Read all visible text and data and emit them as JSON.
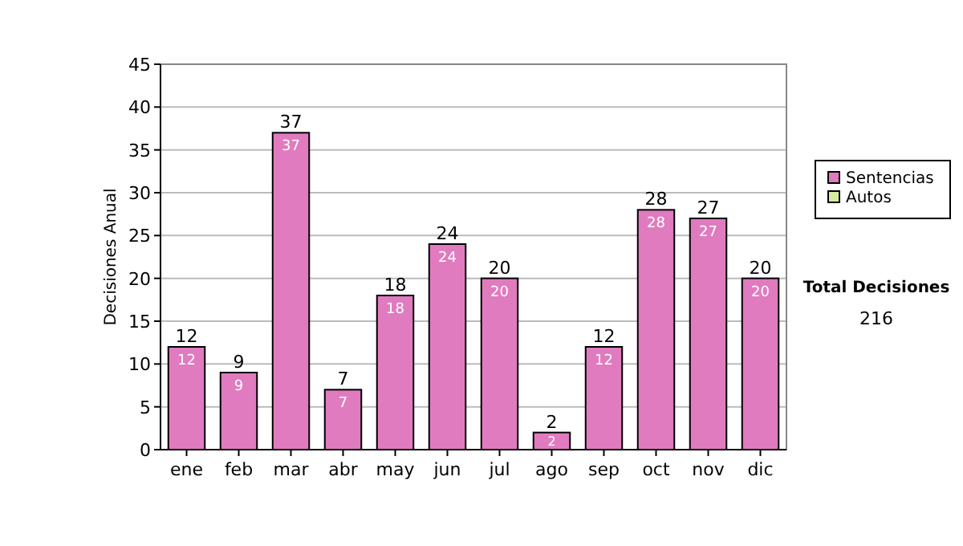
{
  "chart_data": {
    "type": "bar",
    "stacked": true,
    "ylabel": "Decisiones Anual",
    "categories": [
      "ene",
      "feb",
      "mar",
      "abr",
      "may",
      "jun",
      "jul",
      "ago",
      "sep",
      "oct",
      "nov",
      "dic"
    ],
    "series": [
      {
        "name": "Sentencias",
        "color": "#e07bc0",
        "values": [
          12,
          9,
          37,
          7,
          18,
          24,
          20,
          2,
          12,
          28,
          27,
          20
        ],
        "value_labels": [
          "12",
          "9",
          "37",
          "7",
          "18",
          "24",
          "20",
          "2",
          "12",
          "28",
          "27",
          "20"
        ]
      },
      {
        "name": "Autos",
        "color": "#d8eca0",
        "values": [
          0,
          0,
          0,
          0,
          0,
          0,
          0,
          0,
          0,
          0,
          0,
          0
        ]
      }
    ],
    "ylim": [
      0,
      45
    ],
    "yticks": [
      0,
      5,
      10,
      15,
      20,
      25,
      30,
      35,
      40,
      45
    ],
    "grid": "y",
    "legend": "right",
    "totals": [
      "12",
      "9",
      "37",
      "7",
      "18",
      "24",
      "20",
      "2",
      "12",
      "28",
      "27",
      "20"
    ],
    "annotations": [
      "Total Decisiones",
      "216"
    ]
  }
}
